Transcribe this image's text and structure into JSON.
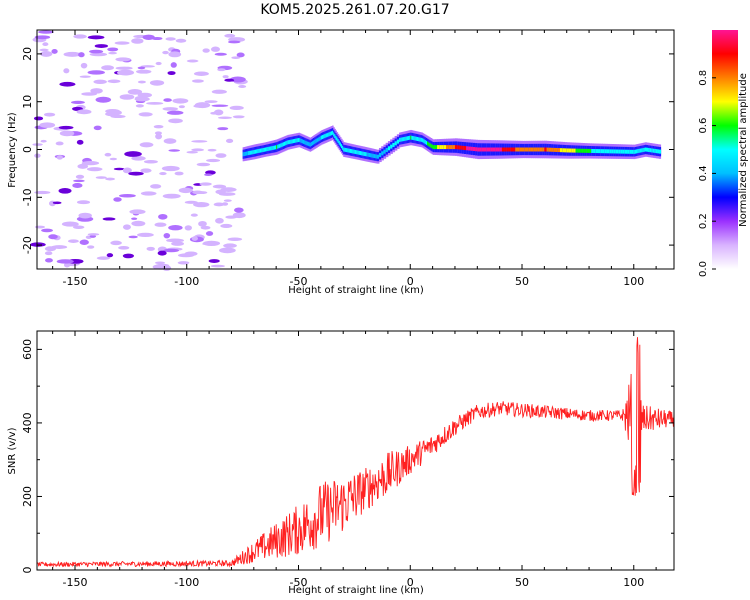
{
  "title": "KOM5.2025.261.07.20.G17",
  "chart_data": [
    {
      "type": "heatmap",
      "xlabel": "Height of straight line (km)",
      "ylabel": "Frequency (Hz)",
      "xlim": [
        -167,
        118
      ],
      "ylim": [
        -25,
        25
      ],
      "xticks": [
        -150,
        -100,
        -50,
        0,
        50,
        100
      ],
      "yticks": [
        -20,
        -10,
        0,
        10,
        20
      ],
      "colorbar": {
        "label": "Normalized spectral amplitude",
        "ticks": [
          0.0,
          0.2,
          0.4,
          0.6,
          0.8
        ],
        "range": [
          0,
          1
        ],
        "colors": [
          "#ffffff",
          "#d9b3ff",
          "#9b30ff",
          "#0000ff",
          "#00bfff",
          "#00ffff",
          "#00ff00",
          "#ffff00",
          "#ff8000",
          "#ff0000",
          "#ff1493"
        ]
      },
      "ridge": [
        {
          "x": -75,
          "f": -1.0,
          "amp": 0.25
        },
        {
          "x": -70,
          "f": -0.5,
          "amp": 0.35
        },
        {
          "x": -65,
          "f": 0.0,
          "amp": 0.3
        },
        {
          "x": -60,
          "f": 0.5,
          "amp": 0.4
        },
        {
          "x": -55,
          "f": 1.5,
          "amp": 0.35
        },
        {
          "x": -50,
          "f": 2.0,
          "amp": 0.3
        },
        {
          "x": -45,
          "f": 1.0,
          "amp": 0.25
        },
        {
          "x": -40,
          "f": 2.5,
          "amp": 0.3
        },
        {
          "x": -35,
          "f": 3.5,
          "amp": 0.3
        },
        {
          "x": -30,
          "f": 0.0,
          "amp": 0.35
        },
        {
          "x": -25,
          "f": -0.5,
          "amp": 0.3
        },
        {
          "x": -20,
          "f": -1.0,
          "amp": 0.3
        },
        {
          "x": -15,
          "f": -1.5,
          "amp": 0.25
        },
        {
          "x": -5,
          "f": 2.0,
          "amp": 0.35
        },
        {
          "x": 0,
          "f": 2.5,
          "amp": 0.4
        },
        {
          "x": 5,
          "f": 2.0,
          "amp": 0.35
        },
        {
          "x": 10,
          "f": 0.5,
          "amp": 0.45
        },
        {
          "x": 20,
          "f": 0.5,
          "amp": 0.7
        },
        {
          "x": 30,
          "f": 0.0,
          "amp": 0.9
        },
        {
          "x": 40,
          "f": 0.0,
          "amp": 0.8
        },
        {
          "x": 50,
          "f": 0.0,
          "amp": 0.65
        },
        {
          "x": 60,
          "f": 0.0,
          "amp": 0.7
        },
        {
          "x": 70,
          "f": -0.2,
          "amp": 0.55
        },
        {
          "x": 80,
          "f": -0.3,
          "amp": 0.4
        },
        {
          "x": 90,
          "f": -0.4,
          "amp": 0.35
        },
        {
          "x": 100,
          "f": -0.5,
          "amp": 0.3
        },
        {
          "x": 105,
          "f": 0.0,
          "amp": 0.3
        },
        {
          "x": 112,
          "f": -0.5,
          "amp": 0.3
        }
      ]
    },
    {
      "type": "line",
      "xlabel": "Height of straight line (km)",
      "ylabel": "SNR (v/v)",
      "xlim": [
        -167,
        118
      ],
      "ylim": [
        0,
        650
      ],
      "xticks": [
        -150,
        -100,
        -50,
        0,
        50,
        100
      ],
      "yticks": [
        0,
        200,
        400,
        600
      ],
      "color": "#ff2020",
      "envelope": [
        {
          "x": -167,
          "base": 15,
          "noise": 6
        },
        {
          "x": -80,
          "base": 18,
          "noise": 8
        },
        {
          "x": -70,
          "base": 50,
          "noise": 30
        },
        {
          "x": -60,
          "base": 80,
          "noise": 50
        },
        {
          "x": -50,
          "base": 110,
          "noise": 70
        },
        {
          "x": -40,
          "base": 150,
          "noise": 90
        },
        {
          "x": -30,
          "base": 180,
          "noise": 80
        },
        {
          "x": -20,
          "base": 220,
          "noise": 60
        },
        {
          "x": -10,
          "base": 260,
          "noise": 60
        },
        {
          "x": 0,
          "base": 300,
          "noise": 40
        },
        {
          "x": 10,
          "base": 340,
          "noise": 30
        },
        {
          "x": 20,
          "base": 390,
          "noise": 25
        },
        {
          "x": 30,
          "base": 430,
          "noise": 20
        },
        {
          "x": 40,
          "base": 440,
          "noise": 20
        },
        {
          "x": 60,
          "base": 430,
          "noise": 18
        },
        {
          "x": 80,
          "base": 420,
          "noise": 15
        },
        {
          "x": 95,
          "base": 420,
          "noise": 15
        },
        {
          "x": 100,
          "base": 420,
          "noise": 150
        },
        {
          "x": 104,
          "base": 410,
          "noise": 40
        },
        {
          "x": 118,
          "base": 410,
          "noise": 20
        }
      ]
    }
  ]
}
